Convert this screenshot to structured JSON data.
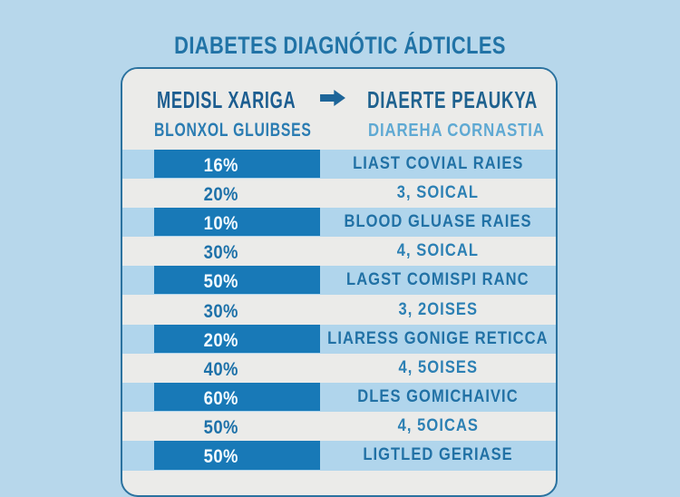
{
  "page": {
    "title": "DIABETES DIAGNÓTIC ÁDTICLES",
    "background_color": "#b7d7eb"
  },
  "colors": {
    "card_background": "#ebebe9",
    "card_border": "#2b729f",
    "bar_fill": "#1879b7",
    "blue_row_background": "#b0d5ec",
    "title_text": "#2173a6",
    "header_text": "#1c5d90",
    "percent_text_on_bar": "#ffffff",
    "percent_text_on_white": "#1d71a9"
  },
  "table": {
    "header": {
      "col1_line1": "MEDISL XARIGA",
      "arrow_icon": "right-arrow",
      "col2_line1": "DIAERTE PEAUKYA",
      "col1_line2": "BLONXOL GLUIBSES",
      "col2_line2": "DIAREHA CORNASTIA"
    },
    "rows": [
      {
        "percent": "16%",
        "label": "LIAST COVIAL RAIES",
        "bar": true
      },
      {
        "percent": "20%",
        "label": "3, SOICAL",
        "bar": false
      },
      {
        "percent": "10%",
        "label": "BLOOD GLUASE RAIES",
        "bar": true
      },
      {
        "percent": "30%",
        "label": "4, SOICAL",
        "bar": false
      },
      {
        "percent": "50%",
        "label": "LAGST COMISPI RANC",
        "bar": true
      },
      {
        "percent": "30%",
        "label": "3, 2OISES",
        "bar": false
      },
      {
        "percent": "20%",
        "label": "LIARESS GONIGE RETICCA",
        "bar": true
      },
      {
        "percent": "40%",
        "label": "4, 5OISES",
        "bar": false
      },
      {
        "percent": "60%",
        "label": "DLES GOMICHAIVIC",
        "bar": true
      },
      {
        "percent": "50%",
        "label": "4, 5OICAS",
        "bar": false
      },
      {
        "percent": "50%",
        "label": "LIGTLED GERIASE",
        "bar": true
      }
    ]
  },
  "chart_data": {
    "type": "table",
    "title": "DIABETES DIAGNÓTIC ÁDTICLES",
    "columns": [
      "MEDISL XARIGA / BLONXOL GLUIBSES",
      "DIAERTE PEAUKYA / DIAREHA CORNASTIA"
    ],
    "categories": [
      "LIAST COVIAL RAIES",
      "3, SOICAL",
      "BLOOD GLUASE RAIES",
      "4, SOICAL",
      "LAGST COMISPI RANC",
      "3, 2OISES",
      "LIARESS GONIGE RETICCA",
      "4, 5OISES",
      "DLES GOMICHAIVIC",
      "4, 5OICAS",
      "LIGTLED GERIASE"
    ],
    "values": [
      16,
      20,
      10,
      30,
      50,
      30,
      20,
      40,
      60,
      50,
      50
    ],
    "value_unit": "%",
    "bar_rows": [
      true,
      false,
      true,
      false,
      true,
      false,
      true,
      false,
      true,
      false,
      true
    ],
    "legend_position": "none",
    "grid": false
  }
}
